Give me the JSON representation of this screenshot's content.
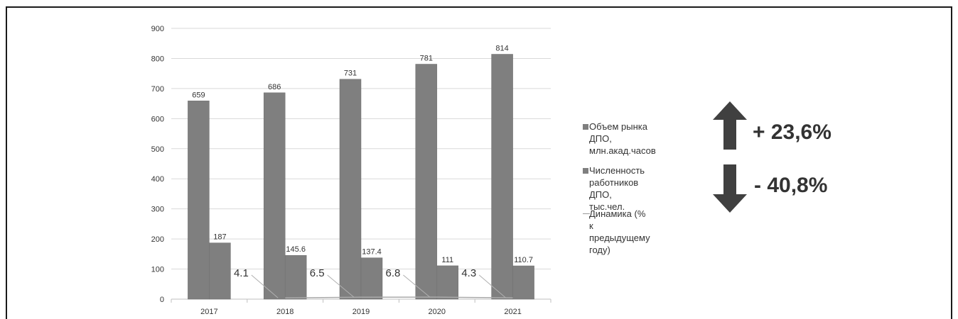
{
  "chart_data": {
    "type": "bar",
    "categories": [
      "2017",
      "2018",
      "2019",
      "2020",
      "2021"
    ],
    "series": [
      {
        "name": "Объем рынка ДПО, млн.акад.часов",
        "kind": "bar",
        "color": "#7f7f7f",
        "values": [
          659,
          686,
          731,
          781,
          814
        ],
        "labels": [
          "659",
          "686",
          "731",
          "781",
          "814"
        ]
      },
      {
        "name": "Численность работников ДПО, тыс.чел.",
        "kind": "bar",
        "color": "#7f7f7f",
        "values": [
          187,
          145.6,
          137.4,
          111,
          110.7
        ],
        "labels": [
          "187",
          "145.6",
          "137.4",
          "111",
          "110.7"
        ]
      },
      {
        "name": "Динамика (% к предыдущему году)",
        "kind": "line",
        "color": "#aaaaaa",
        "values": [
          null,
          4.1,
          6.5,
          6.8,
          4.3
        ],
        "labels": [
          "",
          "4.1",
          "6.5",
          "6.8",
          "4.3"
        ]
      }
    ],
    "yticks": [
      "0",
      "100",
      "200",
      "300",
      "400",
      "500",
      "600",
      "700",
      "800",
      "900"
    ],
    "ylim": [
      0,
      900
    ],
    "grid": true,
    "legend_position": "right"
  },
  "legend": {
    "items": [
      {
        "label": "Объем рынка ДПО,\nмлн.акад.часов"
      },
      {
        "label": "Численность\nработников ДПО,\nтыс.чел."
      },
      {
        "label": "Динамика (% к\nпредыдущему году)"
      }
    ]
  },
  "kpis": {
    "up": {
      "label": "+ 23,6%",
      "direction": "up",
      "color": "#404040"
    },
    "down": {
      "label": "- 40,8%",
      "direction": "down",
      "color": "#404040"
    }
  }
}
